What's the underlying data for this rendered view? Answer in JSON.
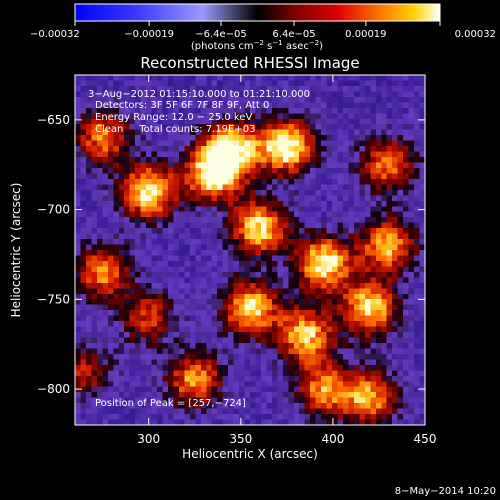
{
  "chart_data": {
    "type": "heatmap",
    "title": "Reconstructed RHESSI Image",
    "xlabel": "Heliocentric X (arcsec)",
    "ylabel": "Heliocentric Y (arcsec)",
    "xlim": [
      260,
      450
    ],
    "ylim": [
      -820,
      -625
    ],
    "x_ticks": [
      300,
      350,
      400,
      450
    ],
    "y_ticks": [
      -650,
      -700,
      -750,
      -800
    ],
    "x_tick_labels": [
      "300",
      "350",
      "400",
      "450"
    ],
    "y_tick_labels": [
      "−650",
      "−700",
      "−750",
      "−800"
    ],
    "colorbar": {
      "min": -0.00032,
      "max": 0.00032,
      "ticks": [
        -0.00032,
        -0.00019,
        -6.4e-05,
        6.4e-05,
        0.00019,
        0.00032
      ],
      "tick_labels": [
        "−0.00032",
        "−0.00019",
        "−6.4e−05",
        "6.4e−05",
        "0.00019",
        "0.00032"
      ],
      "unit_prefix": "(photons cm",
      "unit_exp1": "−2",
      "unit_mid": " s",
      "unit_exp2": "−1",
      "unit_mid2": " asec",
      "unit_exp3": "−2",
      "unit_suffix": ")"
    },
    "annotations": {
      "time": "3−Aug−2012 01:15:10.000 to 01:21:10.000",
      "detectors": "Detectors: 3F 5F 6F 7F 8F 9F, Att 0",
      "energy": "Energy Range: 12.0 − 25.0 keV",
      "method": "Clean     Total counts: 7.19E+03",
      "peak": "Position of Peak = [257,−724]"
    },
    "emission_sources": [
      {
        "x": 300,
        "y": -690,
        "intensity": 0.95
      },
      {
        "x": 335,
        "y": -680,
        "intensity": 0.95
      },
      {
        "x": 360,
        "y": -710,
        "intensity": 0.9
      },
      {
        "x": 375,
        "y": -665,
        "intensity": 1.0
      },
      {
        "x": 345,
        "y": -665,
        "intensity": 0.85
      },
      {
        "x": 395,
        "y": -730,
        "intensity": 0.95
      },
      {
        "x": 355,
        "y": -755,
        "intensity": 0.9
      },
      {
        "x": 385,
        "y": -770,
        "intensity": 0.85
      },
      {
        "x": 420,
        "y": -755,
        "intensity": 0.9
      },
      {
        "x": 430,
        "y": -720,
        "intensity": 0.8
      },
      {
        "x": 325,
        "y": -795,
        "intensity": 0.75
      },
      {
        "x": 395,
        "y": -800,
        "intensity": 0.7
      },
      {
        "x": 420,
        "y": -805,
        "intensity": 0.75
      },
      {
        "x": 275,
        "y": -735,
        "intensity": 0.7
      },
      {
        "x": 275,
        "y": -660,
        "intensity": 0.7
      },
      {
        "x": 430,
        "y": -675,
        "intensity": 0.7
      },
      {
        "x": 265,
        "y": -790,
        "intensity": 0.5
      },
      {
        "x": 300,
        "y": -760,
        "intensity": 0.55
      }
    ]
  },
  "footer": {
    "timestamp": "8−May−2014 10:20"
  }
}
